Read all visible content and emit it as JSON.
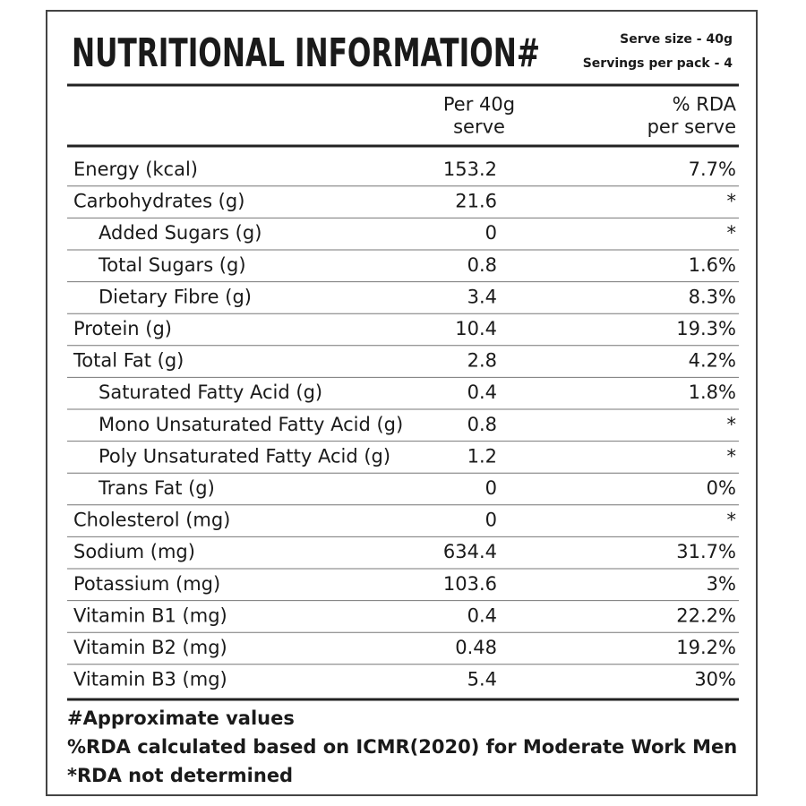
{
  "header": {
    "title": "NUTRITIONAL INFORMATION#",
    "serve_size": "Serve size - 40g",
    "servings_per_pack": "Servings per pack - 4"
  },
  "table": {
    "columns": [
      "Per 40g\nserve",
      "% RDA\nper serve"
    ],
    "rows": [
      {
        "label": "Energy (kcal)",
        "per_serve": "153.2",
        "rda": "7.7%"
      },
      {
        "label": "Carbohydrates (g)",
        "per_serve": "21.6",
        "rda": "*",
        "sub_rows": [
          {
            "label": "Added Sugars (g)",
            "per_serve": "0",
            "rda": "*"
          },
          {
            "label": "Total Sugars (g)",
            "per_serve": "0.8",
            "rda": "1.6%"
          },
          {
            "label": "Dietary Fibre (g)",
            "per_serve": "3.4",
            "rda": "8.3%"
          }
        ]
      },
      {
        "label": "Protein (g)",
        "per_serve": "10.4",
        "rda": "19.3%"
      },
      {
        "label": "Total Fat (g)",
        "per_serve": "2.8",
        "rda": "4.2%",
        "sub_rows": [
          {
            "label": "Saturated Fatty Acid (g)",
            "per_serve": "0.4",
            "rda": "1.8%"
          },
          {
            "label": "Mono Unsaturated Fatty Acid (g)",
            "per_serve": "0.8",
            "rda": "*"
          },
          {
            "label": "Poly Unsaturated Fatty Acid (g)",
            "per_serve": "1.2",
            "rda": "*"
          },
          {
            "label": "Trans Fat (g)",
            "per_serve": "0",
            "rda": "0%"
          }
        ]
      },
      {
        "label": "Cholesterol (mg)",
        "per_serve": "0",
        "rda": "*"
      },
      {
        "label": "Sodium (mg)",
        "per_serve": "634.4",
        "rda": "31.7%"
      },
      {
        "label": "Potassium (mg)",
        "per_serve": "103.6",
        "rda": "3%"
      },
      {
        "label": "Vitamin B1 (mg)",
        "per_serve": "0.4",
        "rda": "22.2%"
      },
      {
        "label": "Vitamin B2 (mg)",
        "per_serve": "0.48",
        "rda": "19.2%"
      },
      {
        "label": "Vitamin B3 (mg)",
        "per_serve": "5.4",
        "rda": "30%"
      }
    ]
  },
  "footnotes": [
    "#Approximate values",
    "%RDA calculated based on ICMR(2020) for Moderate Work Men",
    "*RDA not determined"
  ]
}
